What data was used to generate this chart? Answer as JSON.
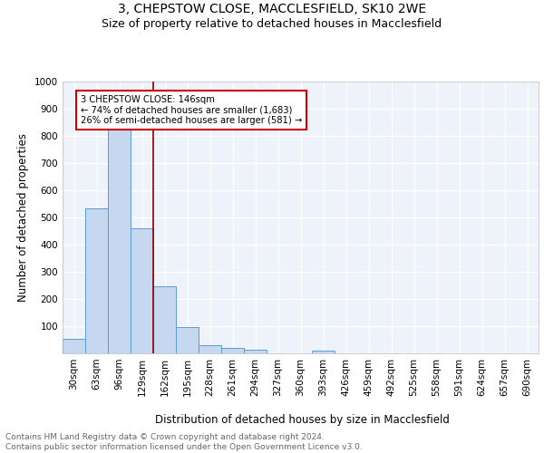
{
  "title1": "3, CHEPSTOW CLOSE, MACCLESFIELD, SK10 2WE",
  "title2": "Size of property relative to detached houses in Macclesfield",
  "xlabel": "Distribution of detached houses by size in Macclesfield",
  "ylabel": "Number of detached properties",
  "bin_labels": [
    "30sqm",
    "63sqm",
    "96sqm",
    "129sqm",
    "162sqm",
    "195sqm",
    "228sqm",
    "261sqm",
    "294sqm",
    "327sqm",
    "360sqm",
    "393sqm",
    "426sqm",
    "459sqm",
    "492sqm",
    "525sqm",
    "558sqm",
    "591sqm",
    "624sqm",
    "657sqm",
    "690sqm"
  ],
  "bar_values": [
    52,
    534,
    828,
    460,
    246,
    98,
    30,
    20,
    12,
    0,
    0,
    10,
    0,
    0,
    0,
    0,
    0,
    0,
    0,
    0,
    0
  ],
  "bar_color": "#c5d8f0",
  "bar_edge_color": "#5b9bd5",
  "vline_color": "#8b0000",
  "annotation_text": "3 CHEPSTOW CLOSE: 146sqm\n← 74% of detached houses are smaller (1,683)\n26% of semi-detached houses are larger (581) →",
  "annotation_box_color": "#ffffff",
  "annotation_box_edge_color": "#cc0000",
  "ylim": [
    0,
    1000
  ],
  "yticks": [
    0,
    100,
    200,
    300,
    400,
    500,
    600,
    700,
    800,
    900,
    1000
  ],
  "footer_text": "Contains HM Land Registry data © Crown copyright and database right 2024.\nContains public sector information licensed under the Open Government Licence v3.0.",
  "background_color": "#eef2fa",
  "grid_color": "#ffffff",
  "title_fontsize": 10,
  "subtitle_fontsize": 9,
  "axis_label_fontsize": 8.5,
  "tick_fontsize": 7.5,
  "footer_fontsize": 6.5
}
